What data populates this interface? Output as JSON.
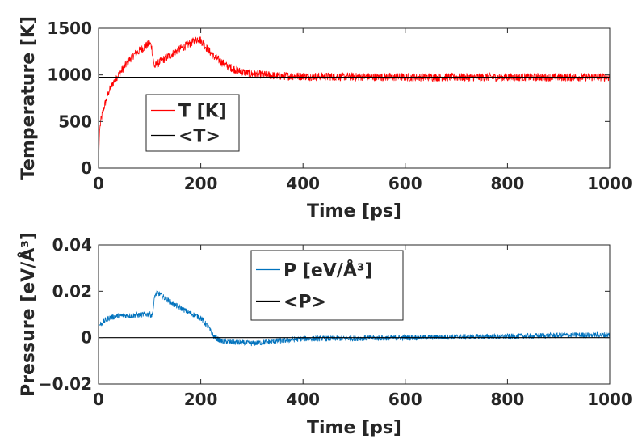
{
  "chart_data": [
    {
      "type": "line",
      "xlabel": "Time [ps]",
      "ylabel": "Temperature [K]",
      "xlim": [
        0,
        1000
      ],
      "ylim": [
        0,
        1500
      ],
      "xticks": [
        "0",
        "200",
        "400",
        "600",
        "800",
        "1000"
      ],
      "yticks": [
        "0",
        "500",
        "1000",
        "1500"
      ],
      "legend_position": "middle-left",
      "grid": false,
      "series": [
        {
          "name": "T [K]",
          "color": "#ff0000",
          "noise_amplitude": 45,
          "x": [
            0,
            2,
            5,
            10,
            20,
            30,
            40,
            50,
            60,
            70,
            80,
            90,
            100,
            104,
            108,
            110,
            120,
            140,
            160,
            180,
            195,
            200,
            210,
            225,
            250,
            275,
            300,
            350,
            400,
            500,
            600,
            700,
            800,
            900,
            1000
          ],
          "y": [
            0,
            400,
            520,
            640,
            820,
            930,
            1010,
            1080,
            1160,
            1220,
            1260,
            1300,
            1340,
            1300,
            1120,
            1090,
            1140,
            1210,
            1280,
            1340,
            1390,
            1370,
            1300,
            1200,
            1100,
            1040,
            1010,
            990,
            985,
            980,
            975,
            975,
            975,
            975,
            975
          ]
        },
        {
          "name": "<T>",
          "color": "#000000",
          "x": [
            0,
            1000
          ],
          "y": [
            975,
            975
          ]
        }
      ]
    },
    {
      "type": "line",
      "xlabel": "Time [ps]",
      "ylabel": "Pressure [eV/Å³]",
      "xlim": [
        0,
        1000
      ],
      "ylim": [
        -0.02,
        0.04
      ],
      "xticks": [
        "0",
        "200",
        "400",
        "600",
        "800",
        "1000"
      ],
      "yticks": [
        "-0.02",
        "0",
        "0.02",
        "0.04"
      ],
      "legend_position": "top-center",
      "grid": false,
      "series": [
        {
          "name": "P [eV/Å³]",
          "color": "#0072bd",
          "noise_amplitude": 0.0012,
          "x": [
            0,
            5,
            20,
            40,
            60,
            80,
            100,
            105,
            108,
            110,
            115,
            130,
            150,
            175,
            200,
            215,
            225,
            240,
            260,
            300,
            350,
            400,
            500,
            600,
            700,
            800,
            900,
            1000
          ],
          "y": [
            0.005,
            0.006,
            0.0085,
            0.0095,
            0.0095,
            0.0098,
            0.0102,
            0.0095,
            0.014,
            0.018,
            0.0195,
            0.017,
            0.014,
            0.011,
            0.0085,
            0.0045,
            0.0005,
            -0.0015,
            -0.002,
            -0.0025,
            -0.0015,
            -0.0005,
            -0.0003,
            0,
            0.0003,
            0.0005,
            0.001,
            0.0012
          ]
        },
        {
          "name": "<P>",
          "color": "#000000",
          "x": [
            0,
            1000
          ],
          "y": [
            0,
            0
          ]
        }
      ]
    }
  ]
}
